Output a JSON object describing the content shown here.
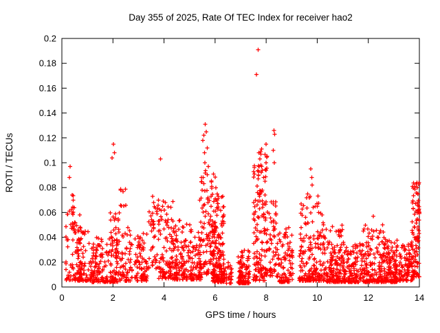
{
  "chart_data": {
    "type": "scatter",
    "title": "Day 355 of 2025, Rate Of TEC Index for receiver hao2",
    "xlabel": "GPS time / hours",
    "ylabel": "ROTI / TECUs",
    "xlim": [
      0,
      14
    ],
    "ylim": [
      0,
      0.2
    ],
    "xticks": {
      "values": [
        0,
        2,
        4,
        6,
        8,
        10,
        12,
        14
      ],
      "labels": [
        "0",
        "2",
        "4",
        "6",
        "8",
        "10",
        "12",
        "14"
      ]
    },
    "yticks": {
      "values": [
        0,
        0.02,
        0.04,
        0.06,
        0.08,
        0.1,
        0.12,
        0.14,
        0.16,
        0.18,
        0.2
      ],
      "labels": [
        "0",
        "0.02",
        "0.04",
        "0.06",
        "0.08",
        "0.1",
        "0.12",
        "0.14",
        "0.16",
        "0.18",
        "0.2"
      ]
    },
    "grid": false,
    "legend": "none",
    "marker": "plus",
    "marker_color": "#ff0000",
    "background_color": "#ffffff",
    "axis_color": "#000000",
    "clusters": [
      [
        0.15,
        0.75,
        0.005,
        0.065,
        70,
        2.0
      ],
      [
        0.2,
        0.5,
        0.045,
        0.075,
        12,
        1.2
      ],
      [
        0.55,
        1.25,
        0.005,
        0.045,
        90,
        2.0
      ],
      [
        1.15,
        2.2,
        0.004,
        0.04,
        150,
        2.2
      ],
      [
        1.9,
        2.25,
        0.025,
        0.06,
        25,
        1.4
      ],
      [
        2.2,
        2.75,
        0.005,
        0.05,
        70,
        2.0
      ],
      [
        2.25,
        2.5,
        0.055,
        0.08,
        8,
        1.2
      ],
      [
        2.85,
        3.35,
        0.005,
        0.045,
        80,
        2.0
      ],
      [
        3.4,
        3.8,
        0.015,
        0.075,
        45,
        1.5
      ],
      [
        3.8,
        4.35,
        0.007,
        0.07,
        90,
        1.9
      ],
      [
        4.35,
        5.05,
        0.006,
        0.055,
        120,
        2.2
      ],
      [
        5.0,
        5.45,
        0.006,
        0.05,
        80,
        2.0
      ],
      [
        5.4,
        6.05,
        0.01,
        0.095,
        120,
        1.7
      ],
      [
        5.9,
        6.35,
        0.004,
        0.075,
        170,
        2.3
      ],
      [
        6.35,
        6.65,
        0.003,
        0.02,
        30,
        1.5
      ],
      [
        6.9,
        7.35,
        0.003,
        0.03,
        100,
        2.2
      ],
      [
        7.5,
        8.05,
        0.005,
        0.115,
        150,
        1.9
      ],
      [
        8.1,
        8.5,
        0.008,
        0.07,
        60,
        1.6
      ],
      [
        8.5,
        9.05,
        0.004,
        0.05,
        90,
        2.2
      ],
      [
        9.3,
        10.3,
        0.005,
        0.075,
        190,
        2.2
      ],
      [
        10.3,
        11.05,
        0.004,
        0.05,
        150,
        2.3
      ],
      [
        11.0,
        11.8,
        0.004,
        0.035,
        130,
        2.1
      ],
      [
        11.8,
        12.65,
        0.004,
        0.05,
        160,
        2.3
      ],
      [
        12.6,
        13.15,
        0.004,
        0.04,
        130,
        2.2
      ],
      [
        13.2,
        13.75,
        0.005,
        0.035,
        90,
        2.1
      ],
      [
        13.7,
        14.0,
        0.008,
        0.085,
        100,
        1.6
      ]
    ],
    "outliers": [
      [
        0.32,
        0.097
      ],
      [
        0.3,
        0.088
      ],
      [
        0.45,
        0.07
      ],
      [
        2.02,
        0.115
      ],
      [
        2.06,
        0.108
      ],
      [
        1.97,
        0.104
      ],
      [
        2.3,
        0.078
      ],
      [
        3.55,
        0.073
      ],
      [
        3.6,
        0.068
      ],
      [
        3.87,
        0.103
      ],
      [
        4.05,
        0.068
      ],
      [
        5.52,
        0.118
      ],
      [
        5.56,
        0.122
      ],
      [
        5.62,
        0.131
      ],
      [
        5.65,
        0.125
      ],
      [
        5.7,
        0.112
      ],
      [
        5.58,
        0.108
      ],
      [
        5.6,
        0.1
      ],
      [
        5.73,
        0.097
      ],
      [
        6.08,
        0.075
      ],
      [
        6.12,
        0.073
      ],
      [
        6.05,
        0.07
      ],
      [
        7.62,
        0.171
      ],
      [
        7.68,
        0.191
      ],
      [
        7.72,
        0.108
      ],
      [
        7.76,
        0.103
      ],
      [
        7.8,
        0.098
      ],
      [
        7.85,
        0.094
      ],
      [
        7.7,
        0.09
      ],
      [
        7.9,
        0.088
      ],
      [
        7.95,
        0.085
      ],
      [
        8.3,
        0.126
      ],
      [
        8.33,
        0.123
      ],
      [
        8.28,
        0.11
      ],
      [
        8.32,
        0.1
      ],
      [
        9.62,
        0.075
      ],
      [
        9.75,
        0.095
      ],
      [
        9.78,
        0.088
      ],
      [
        9.8,
        0.082
      ],
      [
        10.0,
        0.065
      ],
      [
        10.05,
        0.06
      ],
      [
        12.2,
        0.057
      ],
      [
        13.88,
        0.083
      ],
      [
        13.92,
        0.08
      ],
      [
        13.95,
        0.075
      ],
      [
        14.0,
        0.06
      ],
      [
        13.97,
        0.062
      ]
    ]
  }
}
